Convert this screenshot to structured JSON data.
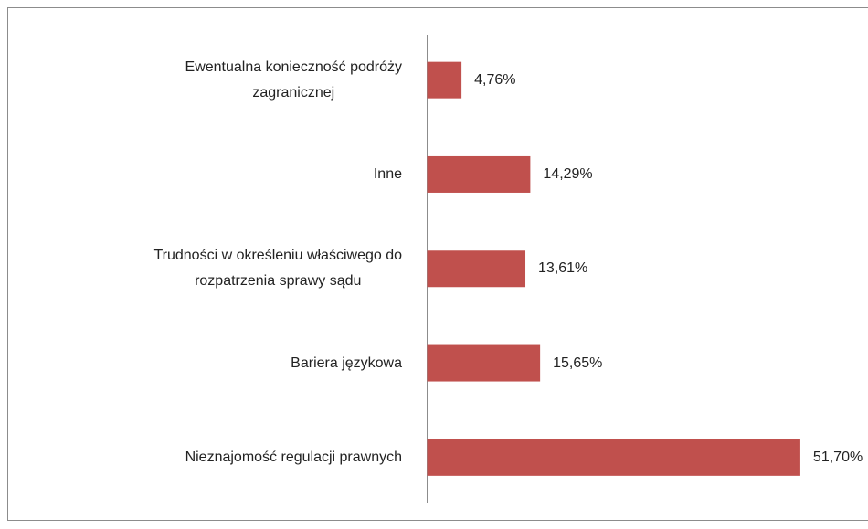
{
  "chart_data": {
    "type": "bar",
    "orientation": "horizontal",
    "categories": [
      "Ewentualna konieczność podróży\nzagranicznej",
      "Inne",
      "Trudności w określeniu właściwego do\nrozpatrzenia sprawy sądu",
      "Bariera językowa",
      "Nieznajomość regulacji prawnych"
    ],
    "values": [
      4.76,
      14.29,
      13.61,
      15.65,
      51.7
    ],
    "value_labels": [
      "4,76%",
      "14,29%",
      "13,61%",
      "15,65%",
      "51,70%"
    ],
    "color": "#c0504d"
  }
}
